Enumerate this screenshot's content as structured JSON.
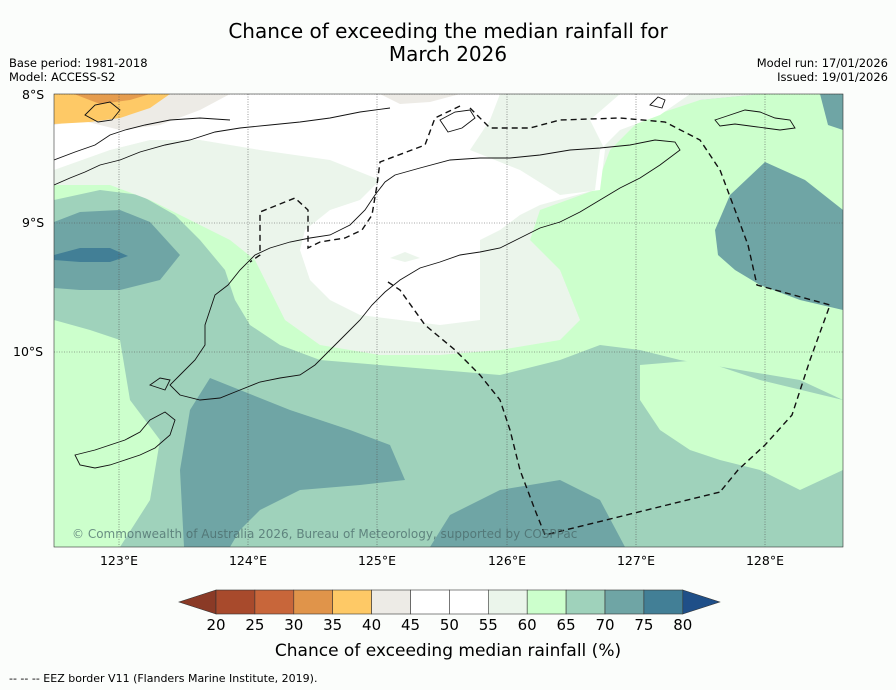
{
  "title": {
    "line1": "Chance of exceeding the median rainfall for",
    "line2": "March 2026"
  },
  "meta": {
    "base_period": "Base period: 1981-2018",
    "model": "Model: ACCESS-S2",
    "model_run": "Model run: 17/01/2026",
    "issued": "Issued: 19/01/2026"
  },
  "axes": {
    "lat_labels": [
      "8°S",
      "9°S",
      "10°S"
    ],
    "lon_labels": [
      "123°E",
      "124°E",
      "125°E",
      "126°E",
      "127°E",
      "128°E"
    ]
  },
  "copyright": "© Commonwealth of Australia 2026, Bureau of Meteorology, supported by COSPPac",
  "colorbar": {
    "ticks": [
      "20",
      "25",
      "30",
      "35",
      "40",
      "45",
      "50",
      "55",
      "60",
      "65",
      "70",
      "75",
      "80"
    ],
    "colors": [
      "#a84a2c",
      "#c8663a",
      "#e0944a",
      "#fec966",
      "#edebe6",
      "#ffffff",
      "#ffffff",
      "#ebf5eb",
      "#ccffcc",
      "#9fd2bb",
      "#6fa5a5",
      "#427f96"
    ],
    "under_color": "#8a3a26",
    "over_color": "#1f4f88",
    "label": "Chance of exceeding median rainfall (%)"
  },
  "footer": "--  --  -- EEZ border V11 (Flanders Marine Institute, 2019)."
}
